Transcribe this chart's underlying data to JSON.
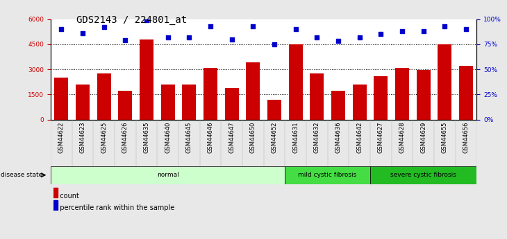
{
  "title": "GDS2143 / 224801_at",
  "samples": [
    "GSM44622",
    "GSM44623",
    "GSM44625",
    "GSM44626",
    "GSM44635",
    "GSM44640",
    "GSM44645",
    "GSM44646",
    "GSM44647",
    "GSM44650",
    "GSM44652",
    "GSM44631",
    "GSM44632",
    "GSM44636",
    "GSM44642",
    "GSM44627",
    "GSM44628",
    "GSM44629",
    "GSM44655",
    "GSM44656"
  ],
  "counts": [
    2500,
    2100,
    2750,
    1700,
    4800,
    2100,
    2100,
    3100,
    1900,
    3400,
    1200,
    4500,
    2750,
    1700,
    2100,
    2600,
    3100,
    2950,
    4500,
    3200
  ],
  "percentiles": [
    90,
    86,
    92,
    79,
    99,
    82,
    82,
    93,
    80,
    93,
    75,
    90,
    82,
    78,
    82,
    85,
    88,
    88,
    93,
    90
  ],
  "bar_color": "#CC0000",
  "dot_color": "#0000CC",
  "ylim_left": [
    0,
    6000
  ],
  "ylim_right": [
    0,
    100
  ],
  "yticks_left": [
    0,
    1500,
    3000,
    4500,
    6000
  ],
  "ytick_labels_left": [
    "0",
    "1500",
    "3000",
    "4500",
    "6000"
  ],
  "yticks_right": [
    0,
    25,
    50,
    75,
    100
  ],
  "ytick_labels_right": [
    "0%",
    "25%",
    "50%",
    "75%",
    "100%"
  ],
  "groups": [
    {
      "label": "normal",
      "start": 0,
      "end": 11,
      "color": "#ccffcc"
    },
    {
      "label": "mild cystic fibrosis",
      "start": 11,
      "end": 15,
      "color": "#44dd44"
    },
    {
      "label": "severe cystic fibrosis",
      "start": 15,
      "end": 20,
      "color": "#22bb22"
    }
  ],
  "disease_state_label": "disease state",
  "legend_count_label": "count",
  "legend_pct_label": "percentile rank within the sample",
  "background_color": "#e8e8e8",
  "plot_bg_color": "#ffffff",
  "grid_color": "#000000",
  "title_fontsize": 10,
  "tick_fontsize": 6.5,
  "bar_width": 0.65
}
